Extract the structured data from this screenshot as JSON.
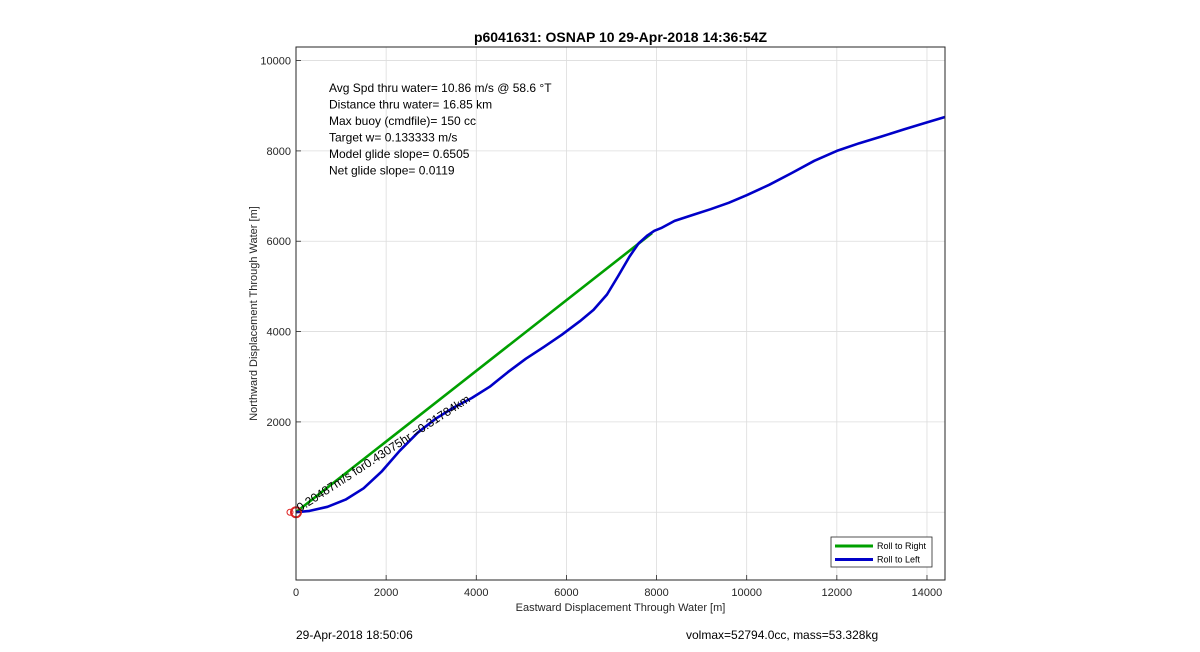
{
  "chart_data": {
    "type": "line",
    "title": "p6041631: OSNAP 10 29-Apr-2018 14:36:54Z",
    "xlabel": "Eastward Displacement Through Water [m]",
    "ylabel": "Northward Displacement Through Water [m]",
    "xlim": [
      0,
      14400
    ],
    "ylim": [
      -1500,
      10300
    ],
    "xticks": [
      0,
      2000,
      4000,
      6000,
      8000,
      10000,
      12000,
      14000
    ],
    "yticks": [
      2000,
      4000,
      6000,
      8000,
      10000
    ],
    "ytick_labels": [
      "2000",
      "4000",
      "6000",
      "8000",
      "10000"
    ],
    "grid": true,
    "legend_position": "bottom-right",
    "series": [
      {
        "name": "Roll to Right",
        "color": "#00a000",
        "x": [
          0,
          7900
        ],
        "y": [
          0,
          6180
        ]
      },
      {
        "name": "Roll to Left",
        "color": "#0000c8",
        "x": [
          0,
          300,
          700,
          1100,
          1500,
          1900,
          2300,
          2700,
          3100,
          3500,
          3900,
          4300,
          4700,
          5100,
          5500,
          5900,
          6300,
          6600,
          6900,
          7150,
          7400,
          7600,
          7800,
          7950,
          8100,
          8400,
          8800,
          9200,
          9600,
          10000,
          10500,
          11000,
          11500,
          12000,
          12500,
          13000,
          13500,
          14000,
          14400
        ],
        "y": [
          0,
          30,
          120,
          280,
          530,
          900,
          1360,
          1760,
          2070,
          2320,
          2530,
          2780,
          3100,
          3400,
          3660,
          3930,
          4230,
          4480,
          4820,
          5230,
          5660,
          5950,
          6130,
          6230,
          6290,
          6450,
          6580,
          6710,
          6850,
          7020,
          7250,
          7510,
          7780,
          8000,
          8170,
          8320,
          8480,
          8630,
          8750
        ]
      }
    ],
    "annotations": {
      "info_lines": [
        "Avg Spd thru water= 10.86 m/s @  58.6 °T",
        "Distance thru water= 16.85 km",
        "Max buoy (cmdfile)= 150 cc",
        "Target w= 0.133333 m/s",
        "Model glide slope= 0.6505",
        "Net glide slope= 0.0119"
      ],
      "rotated_label": "0.20487m/s for0.43075hr =0.31784km",
      "start_marker": {
        "x": 0,
        "y": 0,
        "color": "#dd2222"
      }
    }
  },
  "footer": {
    "left": "29-Apr-2018 18:50:06",
    "right": "volmax=52794.0cc, mass=53.328kg"
  }
}
